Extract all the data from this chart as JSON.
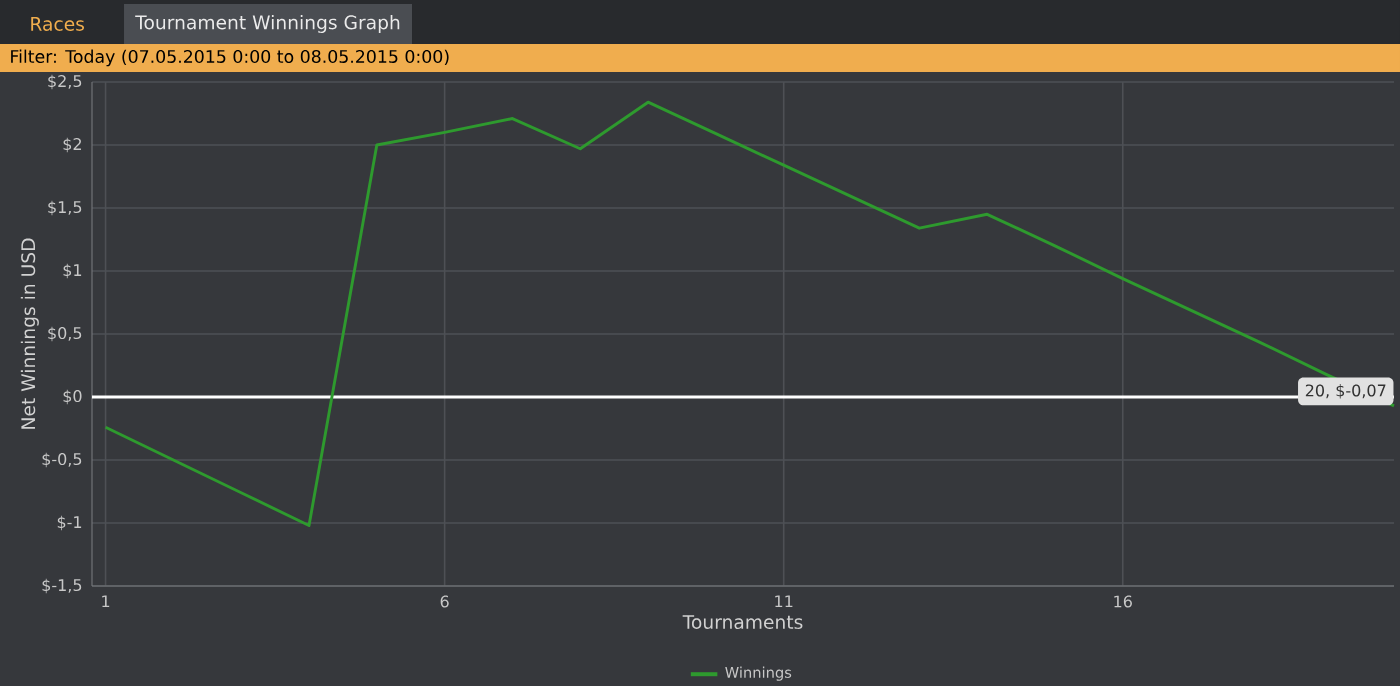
{
  "chart_data": {
    "type": "line",
    "title": "Tournament Winnings Graph",
    "subtitle": "Filter: Today (07.05.2015 0:00 to 08.05.2015 0:00)",
    "xlabel": "Tournaments",
    "ylabel": "Net Winnings in USD",
    "annotations": [
      "Races",
      {
        "text": "20, $-0,07",
        "x": 20,
        "y": -0.07
      }
    ],
    "x": [
      1,
      2,
      3,
      4,
      5,
      6,
      7,
      8,
      9,
      10,
      11,
      12,
      13,
      14,
      15,
      16,
      17,
      18,
      19,
      20
    ],
    "series": [
      {
        "name": "Winnings",
        "color": "#2e9a2e",
        "values": [
          -0.24,
          -0.5,
          -0.76,
          -1.02,
          2.0,
          2.1,
          2.21,
          1.97,
          2.34,
          2.09,
          1.84,
          1.59,
          1.34,
          1.45,
          1.2,
          0.94,
          0.69,
          0.44,
          0.18,
          -0.07
        ]
      }
    ],
    "xlim": [
      0.8,
      20
    ],
    "ylim": [
      -1.5,
      2.5
    ],
    "xticks": [
      1,
      6,
      11,
      16
    ],
    "yticks": [
      {
        "value": -1.5,
        "label": "$-1,5"
      },
      {
        "value": -1,
        "label": "$-1"
      },
      {
        "value": -0.5,
        "label": "$-0,5"
      },
      {
        "value": 0,
        "label": "$0"
      },
      {
        "value": 0.5,
        "label": "$0,5"
      },
      {
        "value": 1,
        "label": "$1"
      },
      {
        "value": 1.5,
        "label": "$1,5"
      },
      {
        "value": 2,
        "label": "$2"
      },
      {
        "value": 2.5,
        "label": "$2,5"
      }
    ],
    "ref_lines": [
      {
        "axis": "y",
        "value": 0,
        "color": "#ffffff"
      }
    ],
    "grid": true,
    "legend": "bottom"
  }
}
